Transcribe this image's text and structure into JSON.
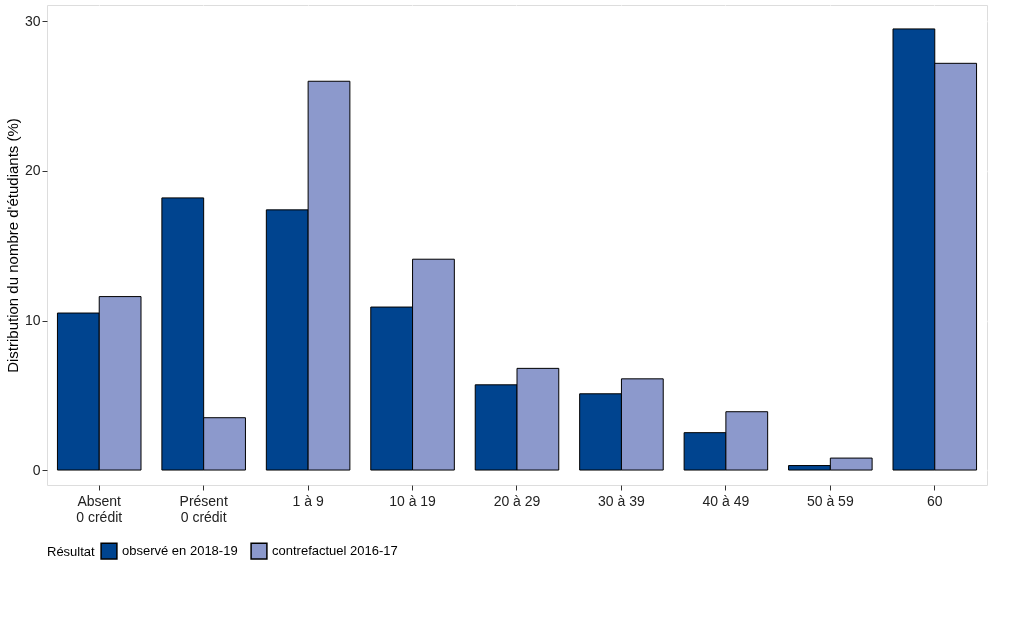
{
  "chart_data": {
    "type": "bar",
    "ylabel": "Distribution du nombre d'étudiants (%)",
    "legend_title": "Résultat",
    "legend": "bottom",
    "grid": true,
    "categories": [
      "Absent\n0 crédit",
      "Présent\n0 crédit",
      "1 à 9",
      "10 à 19",
      "20 à 29",
      "30 à 39",
      "40 à 49",
      "50 à 59",
      "60"
    ],
    "series": [
      {
        "name": "observé en 2018-19",
        "color": "#00448f",
        "values": [
          10.5,
          18.2,
          17.4,
          10.9,
          5.7,
          5.1,
          2.5,
          0.3,
          29.5
        ]
      },
      {
        "name": "contrefactuel 2016-17",
        "color": "#8c99cc",
        "values": [
          11.6,
          3.5,
          26.0,
          14.1,
          6.8,
          6.1,
          3.9,
          0.8,
          27.2
        ]
      }
    ],
    "ylim": [
      -1,
      31.1
    ],
    "yticks": [
      0,
      10,
      20,
      30
    ]
  }
}
